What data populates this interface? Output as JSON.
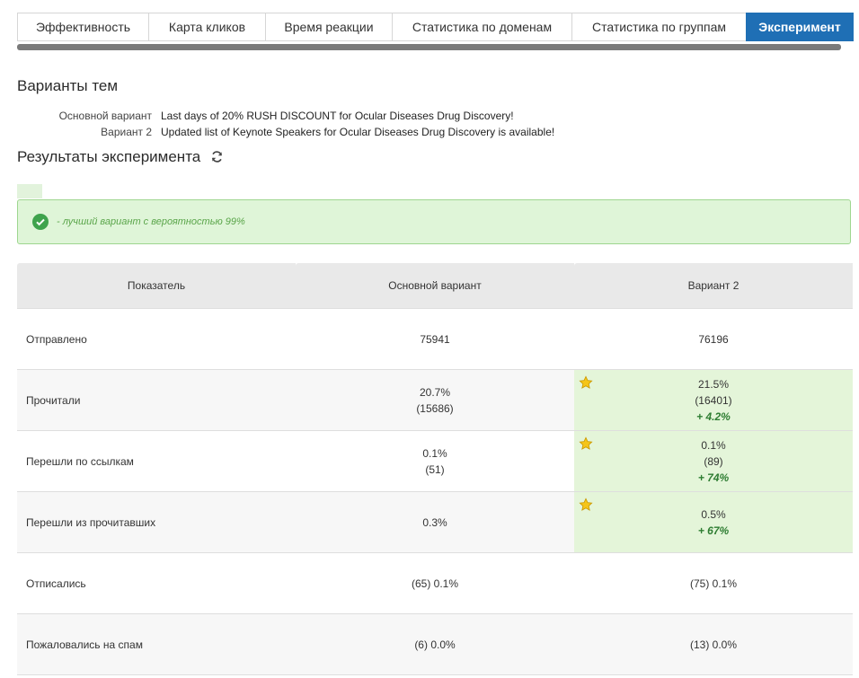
{
  "tabs": [
    {
      "label": "Эффективность",
      "active": false
    },
    {
      "label": "Карта кликов",
      "active": false
    },
    {
      "label": "Время реакции",
      "active": false
    },
    {
      "label": "Статистика по доменам",
      "active": false
    },
    {
      "label": "Статистика по группам",
      "active": false
    },
    {
      "label": "Эксперимент",
      "active": true
    }
  ],
  "subjects": {
    "title": "Варианты тем",
    "items": [
      {
        "label": "Основной вариант",
        "text": "Last days of 20% RUSH DISCOUNT for Ocular Diseases Drug Discovery!"
      },
      {
        "label": "Вариант 2",
        "text": "Updated list of Keynote Speakers for Ocular Diseases Drug Discovery is available!"
      }
    ]
  },
  "results": {
    "title": "Результаты эксперимента",
    "alert": "- лучший вариант с вероятностью 99%"
  },
  "table": {
    "headers": [
      "Показатель",
      "Основной вариант",
      "Вариант 2"
    ],
    "rows": [
      {
        "metric": "Отправлено",
        "a": [
          "75941"
        ],
        "b": [
          "76196"
        ],
        "winner": false
      },
      {
        "metric": "Прочитали",
        "a": [
          "20.7%",
          "(15686)"
        ],
        "b": [
          "21.5%",
          "(16401)"
        ],
        "lift": "+ 4.2%",
        "winner": true
      },
      {
        "metric": "Перешли по ссылкам",
        "a": [
          "0.1%",
          "(51)"
        ],
        "b": [
          "0.1%",
          "(89)"
        ],
        "lift": "+ 74%",
        "winner": true
      },
      {
        "metric": "Перешли из прочитавших",
        "a": [
          "0.3%"
        ],
        "b": [
          "0.5%"
        ],
        "lift": "+ 67%",
        "winner": true
      },
      {
        "metric": "Отписались",
        "a": [
          "(65) 0.1%"
        ],
        "b": [
          "(75) 0.1%"
        ],
        "winner": false
      },
      {
        "metric": "Пожаловались на спам",
        "a": [
          "(6) 0.0%"
        ],
        "b": [
          "(13) 0.0%"
        ],
        "winner": false
      }
    ]
  },
  "colors": {
    "accent": "#1f6fb5",
    "success": "#3fa34d",
    "winner_bg": "#e4f5d9"
  }
}
